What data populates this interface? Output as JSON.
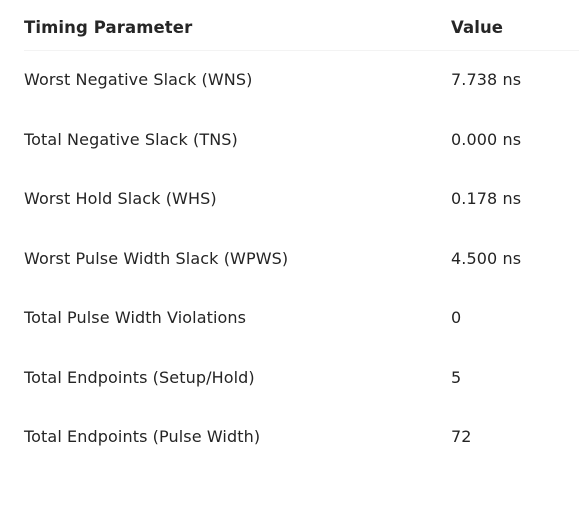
{
  "table": {
    "headers": {
      "parameter": "Timing Parameter",
      "value": "Value"
    },
    "rows": [
      {
        "parameter": "Worst Negative Slack (WNS)",
        "value": "7.738 ns"
      },
      {
        "parameter": "Total Negative Slack (TNS)",
        "value": "0.000 ns"
      },
      {
        "parameter": "Worst Hold Slack (WHS)",
        "value": "0.178 ns"
      },
      {
        "parameter": "Worst Pulse Width Slack (WPWS)",
        "value": "4.500 ns"
      },
      {
        "parameter": "Total Pulse Width Violations",
        "value": "0"
      },
      {
        "parameter": "Total Endpoints (Setup/Hold)",
        "value": "5"
      },
      {
        "parameter": "Total Endpoints (Pulse Width)",
        "value": "72"
      }
    ]
  }
}
